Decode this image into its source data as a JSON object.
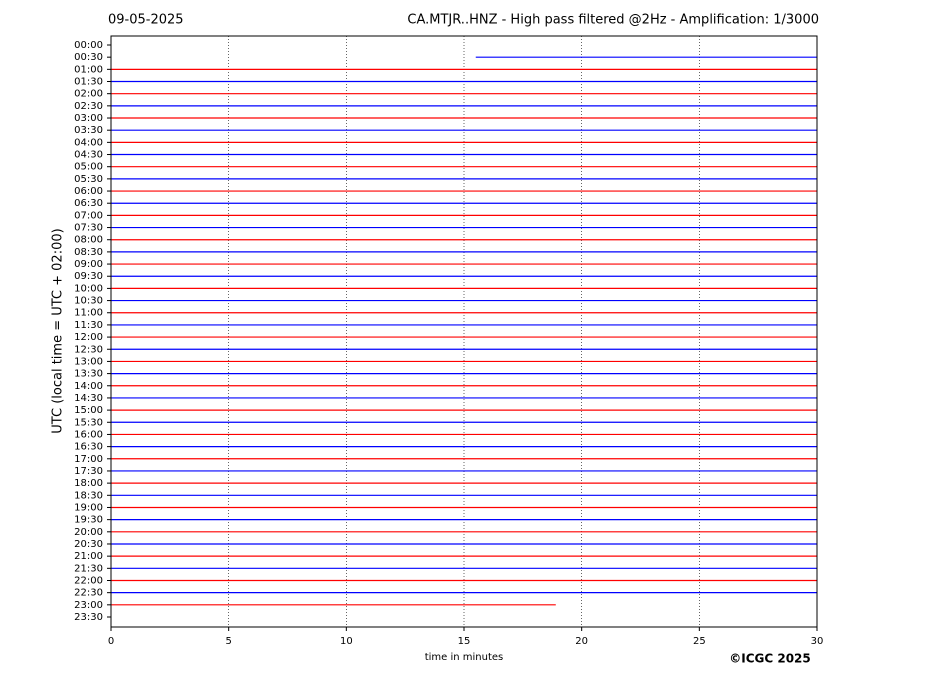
{
  "chart_data": {
    "type": "helicorder",
    "date": "09-05-2025",
    "title": "CA.MTJR..HNZ - High pass filtered @2Hz - Amplification: 1/3000",
    "xlabel": "time in minutes",
    "ylabel": "UTC (local time = UTC + 02:00)",
    "credit": "©ICGC 2025",
    "categories": [
      "00:00",
      "00:30",
      "01:00",
      "01:30",
      "02:00",
      "02:30",
      "03:00",
      "03:30",
      "04:00",
      "04:30",
      "05:00",
      "05:30",
      "06:00",
      "06:30",
      "07:00",
      "07:30",
      "08:00",
      "08:30",
      "09:00",
      "09:30",
      "10:00",
      "10:30",
      "11:00",
      "11:30",
      "12:00",
      "12:30",
      "13:00",
      "13:30",
      "14:00",
      "14:30",
      "15:00",
      "15:30",
      "16:00",
      "16:30",
      "17:00",
      "17:30",
      "18:00",
      "18:30",
      "19:00",
      "19:30",
      "20:00",
      "20:30",
      "21:00",
      "21:30",
      "22:00",
      "22:30",
      "23:00",
      "23:30"
    ],
    "trace_colors": [
      "#ff0000",
      "#0000ff"
    ],
    "trace_start": [
      null,
      15.5,
      0,
      0,
      0,
      0,
      0,
      0,
      0,
      0,
      0,
      0,
      0,
      0,
      0,
      0,
      0,
      0,
      0,
      0,
      0,
      0,
      0,
      0,
      0,
      0,
      0,
      0,
      0,
      0,
      0,
      0,
      0,
      0,
      0,
      0,
      0,
      0,
      0,
      0,
      0,
      0,
      0,
      0,
      0,
      0,
      0,
      null
    ],
    "trace_end": [
      null,
      30,
      30,
      30,
      30,
      30,
      30,
      30,
      30,
      30,
      30,
      30,
      30,
      30,
      30,
      30,
      30,
      30,
      30,
      30,
      30,
      30,
      30,
      30,
      30,
      30,
      30,
      30,
      30,
      30,
      30,
      30,
      30,
      30,
      30,
      30,
      30,
      30,
      30,
      30,
      30,
      30,
      30,
      30,
      30,
      30,
      18.9,
      null
    ],
    "xlim": [
      0,
      30
    ],
    "xticks": [
      0,
      5,
      10,
      15,
      20,
      25,
      30
    ],
    "grid": true
  }
}
